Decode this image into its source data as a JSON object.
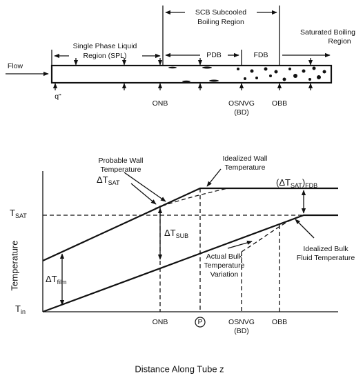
{
  "tube_diagram": {
    "regions": {
      "scb": [
        "SCB Subcooled",
        "Boiling Region"
      ],
      "saturated": [
        "Saturated Boiling",
        "Region"
      ],
      "spl": [
        "Single Phase Liquid",
        "Region (SPL)"
      ],
      "pdb": "PDB",
      "fdb": "FDB"
    },
    "flow": "Flow",
    "heat_flux": "q\"",
    "points": {
      "onb": "ONB",
      "osnvg": "OSNVG",
      "bd": "(BD)",
      "obb": "OBB"
    }
  },
  "graph": {
    "y_axis_label": "Temperature",
    "x_axis_label": "Distance Along Tube z",
    "t_sat": {
      "base": "T",
      "sub": "SAT"
    },
    "t_in": {
      "base": "T",
      "sub": "in"
    },
    "dt_sat": {
      "base": "ΔT",
      "sub": "SAT"
    },
    "dt_sub": {
      "base": "ΔT",
      "sub": "SUB"
    },
    "dt_film": {
      "base": "ΔT",
      "sub": "film"
    },
    "dt_sat_fdb": {
      "base": "(ΔT",
      "sub": "SAT",
      "close": ")",
      "sub2": "FDB"
    },
    "probable_wall": [
      "Probable Wall",
      "Temperature"
    ],
    "idealized_wall": [
      "Idealized Wall",
      "Temperature"
    ],
    "idealized_bulk": [
      "Idealized Bulk",
      "Fluid Temperature"
    ],
    "actual_bulk": [
      "Actual Bulk",
      "Temperature",
      "Variation"
    ],
    "x_points": {
      "onb": "ONB",
      "p": "P",
      "osnvg": "OSNVG",
      "bd": "(BD)",
      "obb": "OBB"
    }
  }
}
